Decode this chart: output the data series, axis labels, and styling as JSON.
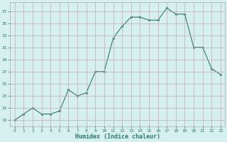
{
  "x": [
    0,
    1,
    2,
    3,
    4,
    5,
    6,
    7,
    8,
    9,
    10,
    11,
    12,
    13,
    14,
    15,
    16,
    17,
    18,
    19,
    20,
    21,
    22,
    23
  ],
  "y": [
    19,
    20,
    21,
    20,
    20,
    20.5,
    24,
    23,
    23.5,
    27,
    27,
    32.5,
    34.5,
    36,
    36,
    35.5,
    35.5,
    37.5,
    36.5,
    36.5,
    31,
    31,
    27.5,
    26.5
  ],
  "line_color": "#2d7a6a",
  "marker_color": "#2d7a6a",
  "bg_color": "#d5f0ee",
  "grid_color": "#c8a8b8",
  "text_color": "#2d7a6a",
  "xlabel": "Humidex (Indice chaleur)",
  "ylabel_ticks": [
    19,
    21,
    23,
    25,
    27,
    29,
    31,
    33,
    35,
    37
  ],
  "xlim": [
    -0.5,
    23.5
  ],
  "ylim": [
    18.0,
    38.5
  ]
}
